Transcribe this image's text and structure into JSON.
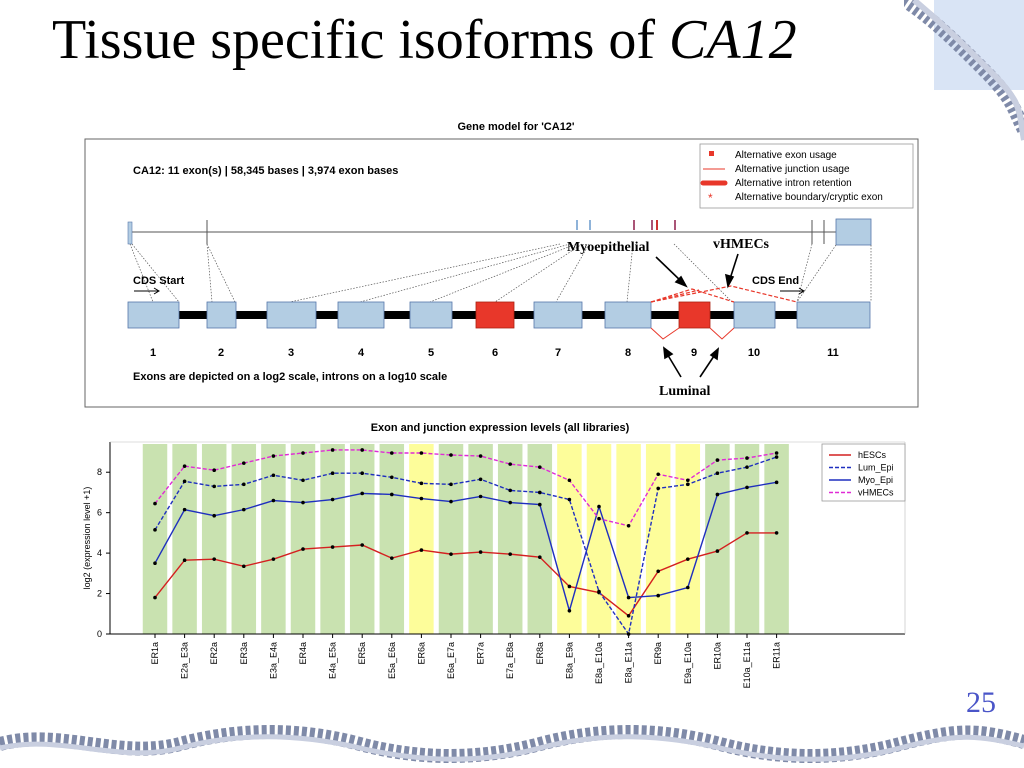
{
  "slide": {
    "title_plain": "Tissue specific isoforms of ",
    "title_italic": "CA12",
    "page_number": "25"
  },
  "gene_model": {
    "title": "Gene model for 'CA12'",
    "info": "CA12:  11 exon(s) | 58,345 bases | 3,974 exon bases",
    "legend": [
      {
        "label": "Alternative exon usage",
        "color": "#e8372a",
        "symbol": "square"
      },
      {
        "label": "Alternative junction usage",
        "color": "#e8372a",
        "symbol": "thin-line"
      },
      {
        "label": "Alternative intron retention",
        "color": "#e8372a",
        "symbol": "thick-line"
      },
      {
        "label": "Alternative boundary/cryptic exon",
        "color": "#e8372a",
        "symbol": "asterisk"
      }
    ],
    "cds_start": "CDS Start",
    "cds_end": "CDS End",
    "exons": [
      "1",
      "2",
      "3",
      "4",
      "5",
      "6",
      "7",
      "8",
      "9",
      "10",
      "11"
    ],
    "alternative_exons": [
      "6",
      "9"
    ],
    "note": "Exons are depicted on a log2 scale, introns on a log10 scale",
    "annotations": {
      "myo": "Myoepithelial",
      "vhmec": "vHMECs",
      "luminal": "Luminal"
    },
    "colors": {
      "exon": "#b3cde3",
      "alt_exon": "#e8372a",
      "intron": "#000000"
    }
  },
  "chart_data": {
    "type": "line",
    "title": "Exon and junction expression levels (all libraries)",
    "xlabel": "",
    "ylabel": "log2 (expression level +1)",
    "ylim": [
      0,
      9
    ],
    "yticks": [
      0,
      2,
      4,
      6,
      8
    ],
    "categories": [
      "ER1a",
      "E2a_E3a",
      "ER2a",
      "ER3a",
      "E3a_E4a",
      "ER4a",
      "E4a_E5a",
      "ER5a",
      "E5a_E6a",
      "ER6a",
      "E6a_E7a",
      "ER7a",
      "E7a_E8a",
      "ER8a",
      "E8a_E9a",
      "E8a_E10a",
      "E8a_E11a",
      "ER9a",
      "E9a_E10a",
      "ER10a",
      "E10a_E11a",
      "ER11a"
    ],
    "band_colors": [
      "green",
      "green",
      "green",
      "green",
      "green",
      "green",
      "green",
      "green",
      "green",
      "yellow",
      "green",
      "green",
      "green",
      "green",
      "yellow",
      "yellow",
      "yellow",
      "yellow",
      "yellow",
      "green",
      "green",
      "green"
    ],
    "colors": {
      "green": "#c9e2b0",
      "yellow": "#fdfd9a"
    },
    "series": [
      {
        "name": "hESCs",
        "color": "#d42020",
        "dash": "solid",
        "values": [
          1.8,
          3.65,
          3.7,
          3.35,
          3.7,
          4.2,
          4.3,
          4.4,
          3.75,
          4.15,
          3.95,
          4.05,
          3.95,
          3.8,
          2.35,
          2.05,
          0.9,
          3.1,
          3.7,
          4.1,
          5.0,
          5.0
        ]
      },
      {
        "name": "Lum_Epi",
        "color": "#1f2fbf",
        "dash": "dashed",
        "values": [
          5.15,
          7.55,
          7.3,
          7.4,
          7.85,
          7.6,
          7.95,
          7.95,
          7.75,
          7.45,
          7.4,
          7.65,
          7.1,
          7.0,
          6.65,
          2.1,
          0.0,
          7.2,
          7.4,
          7.95,
          8.25,
          8.75
        ]
      },
      {
        "name": "Myo_Epi",
        "color": "#1f2fbf",
        "dash": "solid",
        "values": [
          3.5,
          6.15,
          5.85,
          6.15,
          6.6,
          6.5,
          6.65,
          6.95,
          6.9,
          6.7,
          6.55,
          6.8,
          6.5,
          6.4,
          1.15,
          6.3,
          1.8,
          1.9,
          2.3,
          6.9,
          7.25,
          7.5
        ]
      },
      {
        "name": "vHMECs",
        "color": "#e02ad6",
        "dash": "dashed",
        "values": [
          6.45,
          8.3,
          8.1,
          8.45,
          8.8,
          8.95,
          9.1,
          9.1,
          8.95,
          8.95,
          8.85,
          8.8,
          8.4,
          8.25,
          7.6,
          5.7,
          5.35,
          7.9,
          7.6,
          8.6,
          8.7,
          8.95
        ]
      }
    ],
    "legend_position": "top-right",
    "grid": false
  }
}
